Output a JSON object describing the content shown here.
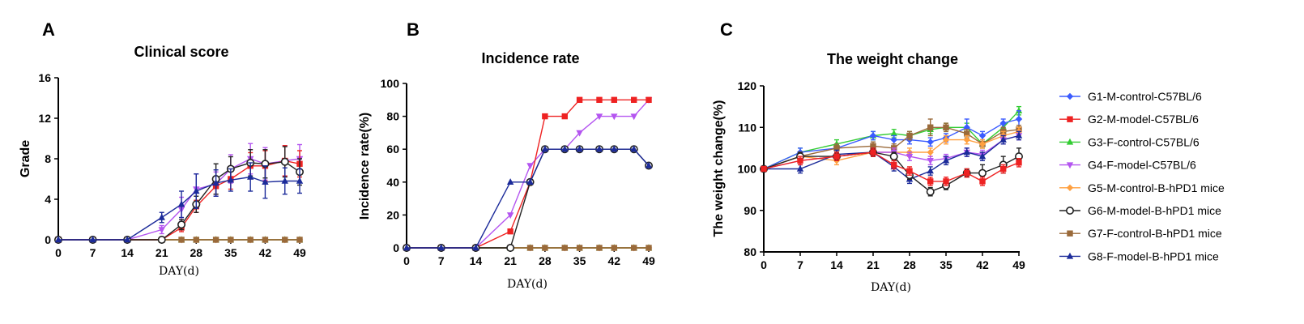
{
  "colors": {
    "G1": "#3a5bff",
    "G2": "#ee2222",
    "G3": "#33cc33",
    "G4": "#b455f0",
    "G5": "#ffa040",
    "G6": "#222222",
    "G7": "#9a6a3a",
    "G8": "#1c2b9a"
  },
  "legend": {
    "placement": "right",
    "entries": [
      {
        "key": "G1",
        "label": "G1-M-control-C57BL/6",
        "marker": "diamond"
      },
      {
        "key": "G2",
        "label": "G2-M-model-C57BL/6",
        "marker": "square"
      },
      {
        "key": "G3",
        "label": "G3-F-control-C57BL/6",
        "marker": "triangle-up"
      },
      {
        "key": "G4",
        "label": "G4-F-model-C57BL/6",
        "marker": "triangle-down"
      },
      {
        "key": "G5",
        "label": "G5-M-control-B-hPD1 mice",
        "marker": "diamond"
      },
      {
        "key": "G6",
        "label": "G6-M-model-B-hPD1 mice",
        "marker": "circle-open"
      },
      {
        "key": "G7",
        "label": "G7-F-control-B-hPD1 mice",
        "marker": "square"
      },
      {
        "key": "G8",
        "label": "G8-F-model-B-hPD1 mice",
        "marker": "triangle-up"
      }
    ]
  },
  "chart_data": [
    {
      "panel_label": "A",
      "type": "line",
      "title": "Clinical score",
      "xlabel": "DAY(d)",
      "ylabel": "Grade",
      "xlim": [
        0,
        49
      ],
      "ylim": [
        0,
        16
      ],
      "xticks": [
        0,
        7,
        14,
        21,
        28,
        35,
        42,
        49
      ],
      "yticks": [
        0,
        4,
        8,
        12,
        16
      ],
      "error_bars": true,
      "series": [
        {
          "key": "G1",
          "x": [
            0,
            7,
            14,
            21,
            25,
            28,
            32,
            35,
            39,
            42,
            46,
            49
          ],
          "y": [
            0,
            0,
            0,
            0,
            0,
            0,
            0,
            0,
            0,
            0,
            0,
            0
          ]
        },
        {
          "key": "G3",
          "x": [
            0,
            7,
            14,
            21,
            25,
            28,
            32,
            35,
            39,
            42,
            46,
            49
          ],
          "y": [
            0,
            0,
            0,
            0,
            0,
            0,
            0,
            0,
            0,
            0,
            0,
            0
          ]
        },
        {
          "key": "G5",
          "x": [
            0,
            7,
            14,
            21,
            25,
            28,
            32,
            35,
            39,
            42,
            46,
            49
          ],
          "y": [
            0,
            0,
            0,
            0,
            0,
            0,
            0,
            0,
            0,
            0,
            0,
            0
          ]
        },
        {
          "key": "G7",
          "x": [
            0,
            7,
            14,
            21,
            25,
            28,
            32,
            35,
            39,
            42,
            46,
            49
          ],
          "y": [
            0,
            0,
            0,
            0,
            0,
            0,
            0,
            0,
            0,
            0,
            0,
            0
          ]
        },
        {
          "key": "G4",
          "x": [
            0,
            7,
            14,
            21,
            25,
            28,
            32,
            35,
            39,
            42,
            46,
            49
          ],
          "y": [
            0,
            0,
            0,
            1.0,
            3.0,
            5.0,
            5.5,
            7.0,
            8.0,
            7.5,
            7.8,
            8.0
          ],
          "err": [
            0,
            0,
            0,
            0.4,
            1.2,
            1.5,
            1.2,
            1.4,
            1.5,
            1.6,
            1.5,
            1.4
          ]
        },
        {
          "key": "G2",
          "x": [
            0,
            7,
            14,
            21,
            25,
            28,
            32,
            35,
            39,
            42,
            46,
            49
          ],
          "y": [
            0,
            0,
            0,
            0,
            1.2,
            3.3,
            5.3,
            6.0,
            7.3,
            7.3,
            7.8,
            7.5
          ],
          "err": [
            0,
            0,
            0,
            0,
            0.4,
            0.6,
            0.8,
            1.0,
            1.3,
            1.5,
            1.5,
            1.3
          ]
        },
        {
          "key": "G6",
          "x": [
            0,
            7,
            14,
            21,
            25,
            28,
            32,
            35,
            39,
            42,
            46,
            49
          ],
          "y": [
            0,
            0,
            0,
            0,
            1.5,
            3.5,
            6.0,
            7.0,
            7.6,
            7.5,
            7.7,
            6.7
          ],
          "err": [
            0,
            0,
            0,
            0,
            0.5,
            0.8,
            1.5,
            1.2,
            1.3,
            1.4,
            1.5,
            1.3
          ]
        },
        {
          "key": "G8",
          "x": [
            0,
            7,
            14,
            21,
            25,
            28,
            32,
            35,
            39,
            42,
            46,
            49
          ],
          "y": [
            0,
            0,
            0,
            2.2,
            3.5,
            4.8,
            5.6,
            5.9,
            6.2,
            5.7,
            5.8,
            5.8
          ],
          "err": [
            0,
            0,
            0,
            0.5,
            1.3,
            1.7,
            1.3,
            1.1,
            1.4,
            1.6,
            1.3,
            1.2
          ]
        }
      ]
    },
    {
      "panel_label": "B",
      "type": "line",
      "title": "Incidence rate",
      "xlabel": "DAY(d)",
      "ylabel": "Incidence rate(%)",
      "xlim": [
        0,
        49
      ],
      "ylim": [
        0,
        100
      ],
      "xticks": [
        0,
        7,
        14,
        21,
        28,
        35,
        42,
        49
      ],
      "yticks": [
        0,
        20,
        40,
        60,
        80,
        100
      ],
      "series": [
        {
          "key": "G1",
          "x": [
            0,
            7,
            14,
            21,
            25,
            28,
            32,
            35,
            39,
            42,
            46,
            49
          ],
          "y": [
            0,
            0,
            0,
            0,
            0,
            0,
            0,
            0,
            0,
            0,
            0,
            0
          ]
        },
        {
          "key": "G3",
          "x": [
            0,
            7,
            14,
            21,
            25,
            28,
            32,
            35,
            39,
            42,
            46,
            49
          ],
          "y": [
            0,
            0,
            0,
            0,
            0,
            0,
            0,
            0,
            0,
            0,
            0,
            0
          ]
        },
        {
          "key": "G5",
          "x": [
            0,
            7,
            14,
            21,
            25,
            28,
            32,
            35,
            39,
            42,
            46,
            49
          ],
          "y": [
            0,
            0,
            0,
            0,
            0,
            0,
            0,
            0,
            0,
            0,
            0,
            0
          ]
        },
        {
          "key": "G7",
          "x": [
            0,
            7,
            14,
            21,
            25,
            28,
            32,
            35,
            39,
            42,
            46,
            49
          ],
          "y": [
            0,
            0,
            0,
            0,
            0,
            0,
            0,
            0,
            0,
            0,
            0,
            0
          ]
        },
        {
          "key": "G4",
          "x": [
            0,
            7,
            14,
            21,
            25,
            28,
            32,
            35,
            39,
            42,
            46,
            49
          ],
          "y": [
            0,
            0,
            0,
            20,
            50,
            60,
            60,
            70,
            80,
            80,
            80,
            90
          ]
        },
        {
          "key": "G2",
          "x": [
            0,
            7,
            14,
            21,
            25,
            28,
            32,
            35,
            39,
            42,
            46,
            49
          ],
          "y": [
            0,
            0,
            0,
            10,
            40,
            80,
            80,
            90,
            90,
            90,
            90,
            90
          ]
        },
        {
          "key": "G6",
          "x": [
            0,
            7,
            14,
            21,
            25,
            28,
            32,
            35,
            39,
            42,
            46,
            49
          ],
          "y": [
            0,
            0,
            0,
            0,
            40,
            60,
            60,
            60,
            60,
            60,
            60,
            50
          ]
        },
        {
          "key": "G8",
          "x": [
            0,
            7,
            14,
            21,
            25,
            28,
            32,
            35,
            39,
            42,
            46,
            49
          ],
          "y": [
            0,
            0,
            0,
            40,
            40,
            60,
            60,
            60,
            60,
            60,
            60,
            50
          ]
        }
      ]
    },
    {
      "panel_label": "C",
      "type": "line",
      "title": "The weight change",
      "xlabel": "DAY(d)",
      "ylabel": "The weight change(%)",
      "xlim": [
        0,
        49
      ],
      "ylim": [
        80,
        120
      ],
      "xticks": [
        0,
        7,
        14,
        21,
        28,
        35,
        42,
        49
      ],
      "yticks": [
        80,
        90,
        100,
        110,
        120
      ],
      "error_bars": true,
      "series": [
        {
          "key": "G3",
          "x": [
            0,
            7,
            14,
            21,
            25,
            28,
            32,
            35,
            39,
            42,
            46,
            49
          ],
          "y": [
            100,
            104,
            106,
            108,
            108.5,
            108,
            109.5,
            110,
            110,
            106,
            110,
            114
          ],
          "err": [
            0,
            1,
            1,
            1,
            1,
            1,
            1,
            1,
            1,
            1,
            1,
            1
          ]
        },
        {
          "key": "G1",
          "x": [
            0,
            7,
            14,
            21,
            25,
            28,
            32,
            35,
            39,
            42,
            46,
            49
          ],
          "y": [
            100,
            104,
            105,
            108,
            107,
            107,
            106.5,
            107.5,
            110,
            108,
            111,
            112
          ],
          "err": [
            0,
            1,
            1,
            1,
            1,
            1,
            1,
            1,
            2,
            1,
            1,
            2
          ]
        },
        {
          "key": "G7",
          "x": [
            0,
            7,
            14,
            21,
            25,
            28,
            32,
            35,
            39,
            42,
            46,
            49
          ],
          "y": [
            100,
            103,
            105,
            105.5,
            105,
            108,
            110,
            110,
            108.5,
            106,
            109,
            109.5
          ],
          "err": [
            0,
            1,
            1,
            1,
            1,
            1,
            2,
            1,
            1,
            1,
            1,
            1
          ]
        },
        {
          "key": "G5",
          "x": [
            0,
            7,
            14,
            21,
            25,
            28,
            32,
            35,
            39,
            42,
            46,
            49
          ],
          "y": [
            100,
            103,
            102,
            104,
            104,
            104,
            104,
            107,
            107,
            106,
            108,
            109
          ],
          "err": [
            0,
            1,
            1,
            1,
            1,
            1,
            1,
            1,
            1,
            1,
            1,
            1
          ]
        },
        {
          "key": "G4",
          "x": [
            0,
            7,
            14,
            21,
            25,
            28,
            32,
            35,
            39,
            42,
            46,
            49
          ],
          "y": [
            100,
            102,
            103,
            104,
            104,
            103,
            102,
            102.5,
            104,
            103.5,
            107,
            108
          ],
          "err": [
            0,
            1,
            1,
            1,
            1,
            1,
            1,
            1,
            1,
            1,
            1,
            1
          ]
        },
        {
          "key": "G8",
          "x": [
            0,
            7,
            14,
            21,
            25,
            28,
            32,
            35,
            39,
            42,
            46,
            49
          ],
          "y": [
            100,
            100,
            103.5,
            104,
            100.5,
            97.5,
            99.5,
            102,
            104,
            103,
            107,
            108
          ],
          "err": [
            0,
            1,
            1,
            1,
            1,
            1,
            1,
            1,
            1,
            1,
            1,
            1
          ]
        },
        {
          "key": "G6",
          "x": [
            0,
            7,
            14,
            21,
            25,
            28,
            32,
            35,
            39,
            42,
            46,
            49
          ],
          "y": [
            100,
            103,
            103,
            104,
            103,
            98.5,
            94.5,
            96,
            99,
            99,
            101,
            103
          ],
          "err": [
            0,
            1,
            1,
            1,
            1,
            1,
            1,
            1,
            1,
            2,
            2,
            2
          ]
        },
        {
          "key": "G2",
          "x": [
            0,
            7,
            14,
            21,
            25,
            28,
            32,
            35,
            39,
            42,
            46,
            49
          ],
          "y": [
            100,
            102,
            103,
            104,
            101,
            99.5,
            97,
            97,
            99,
            97,
            100,
            101.5
          ],
          "err": [
            0,
            1,
            1,
            1,
            1,
            1,
            1,
            1,
            1,
            1,
            1,
            1
          ]
        }
      ]
    }
  ]
}
